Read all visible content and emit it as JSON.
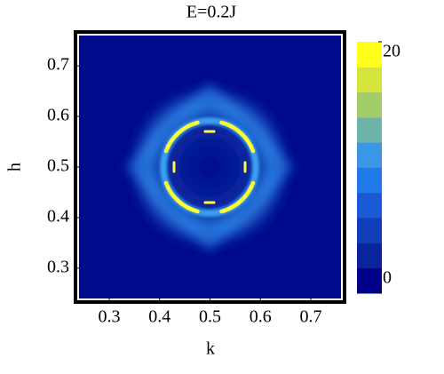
{
  "chart_data": {
    "type": "heatmap",
    "title": "E=0.2J",
    "x_label": "k",
    "y_label": "h",
    "xlim": [
      0.24,
      0.76
    ],
    "xticks": [
      0.3,
      0.4,
      0.5,
      0.6,
      0.7
    ],
    "ylim": [
      0.24,
      0.76
    ],
    "yticks": [
      0.3,
      0.4,
      0.5,
      0.6,
      0.7
    ],
    "colorbar": {
      "lim": [
        0,
        20
      ],
      "ticks": [
        0,
        20
      ],
      "colors": [
        "#00008b",
        "#0a249c",
        "#103eb8",
        "#1a5ad4",
        "#207ae8",
        "#3b96e6",
        "#6cb4aa",
        "#a2cd66",
        "#d4e43c",
        "#ffff1a"
      ]
    }
  }
}
